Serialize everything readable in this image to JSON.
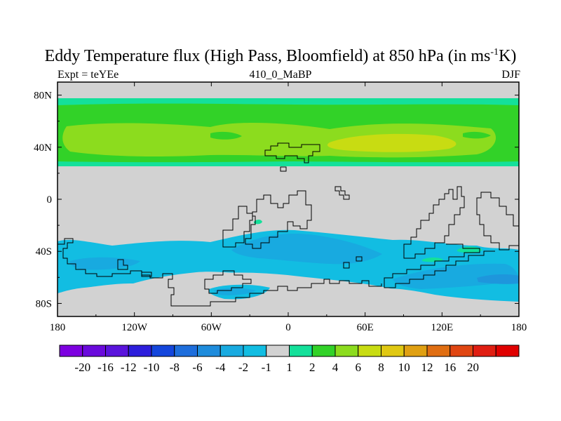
{
  "title": {
    "prefix": "Eddy Temperature flux (High Pass, Bloomfield) at 850 hPa (in ms",
    "superscript": "-1",
    "suffix": "K)"
  },
  "subtitle": {
    "left": "Expt = teYEe",
    "center": "410_0_MaBP",
    "right": "DJF"
  },
  "colors": {
    "background_gray": "#d2d2d2",
    "neg1": "#12bde2",
    "neg2": "#18aae0",
    "neg4": "#1e96dc",
    "pos1": "#14e09a",
    "pos2": "#32d228",
    "pos4": "#8cdc1e",
    "pos6": "#c8dc12",
    "coast": "#000000"
  },
  "chart_data": {
    "type": "heatmap",
    "title": "Eddy Temperature flux (High Pass, Bloomfield) at 850 hPa (in ms-1K)",
    "variable": "eddy temperature flux",
    "units": "ms-1K",
    "level": "850 hPa",
    "season": "DJF",
    "experiment": "teYEe",
    "run_label": "410_0_MaBP",
    "x_axis": {
      "range": [
        -180,
        180
      ],
      "ticks": [
        -180,
        -120,
        -60,
        0,
        60,
        120,
        180
      ],
      "tick_labels": [
        "180",
        "120W",
        "60W",
        "0",
        "60E",
        "120E",
        "180"
      ]
    },
    "y_axis": {
      "range": [
        -90,
        90
      ],
      "ticks": [
        80,
        40,
        0,
        -40,
        -80
      ],
      "tick_labels": [
        "80N",
        "40N",
        "0",
        "40S",
        "80S"
      ]
    },
    "colorbar": {
      "colors": [
        "#7d00e0",
        "#6a0adc",
        "#5a14dc",
        "#2d1edc",
        "#1446dc",
        "#1e6edc",
        "#1e8cdc",
        "#18aae0",
        "#12bde2",
        "#d2d2d2",
        "#14e09a",
        "#32d228",
        "#8cdc1e",
        "#c8dc12",
        "#e0c812",
        "#e0a012",
        "#e06e12",
        "#e04612",
        "#e01e12",
        "#e00000"
      ],
      "labels": [
        "-20",
        "-16",
        "-12",
        "-10",
        "-8",
        "-6",
        "-4",
        "-2",
        "-1",
        "1",
        "2",
        "4",
        "6",
        "8",
        "10",
        "12",
        "16",
        "20"
      ]
    },
    "regions": [
      {
        "name": "nh-band-outer",
        "category": "1 to 2",
        "lon": [
          -180,
          180
        ],
        "lat": [
          23,
          76
        ]
      },
      {
        "name": "nh-band-main",
        "category": "2 to 4",
        "lon": [
          -180,
          180
        ],
        "lat": [
          27,
          70
        ]
      },
      {
        "name": "nh-band-core",
        "category": "4 to 6",
        "lon": [
          -150,
          150
        ],
        "lat": [
          33,
          64
        ]
      },
      {
        "name": "nh-max",
        "category": "6 to 8",
        "lon": [
          40,
          115
        ],
        "lat": [
          38,
          52
        ]
      },
      {
        "name": "sh-storm-track",
        "category": "-1 to -2",
        "lon": [
          -180,
          180
        ],
        "lat": [
          -90,
          -45
        ]
      },
      {
        "name": "sh-core-atlantic",
        "category": "-2 to -4",
        "lon": [
          -40,
          55
        ],
        "lat": [
          -65,
          -45
        ]
      },
      {
        "name": "sh-core-pacific",
        "category": "-2 to -4",
        "lon": [
          90,
          180
        ],
        "lat": [
          -72,
          -55
        ]
      },
      {
        "name": "sh-max",
        "category": "-4 to -6",
        "lon": [
          140,
          180
        ],
        "lat": [
          -72,
          -60
        ]
      },
      {
        "name": "aus-positive",
        "category": "1 to 2",
        "lon": [
          130,
          150
        ],
        "lat": [
          -39,
          -33
        ]
      }
    ]
  },
  "labels": {
    "x": [
      "180",
      "120W",
      "60W",
      "0",
      "60E",
      "120E",
      "180"
    ],
    "y": [
      "80N",
      "40N",
      "0",
      "40S",
      "80S"
    ]
  }
}
